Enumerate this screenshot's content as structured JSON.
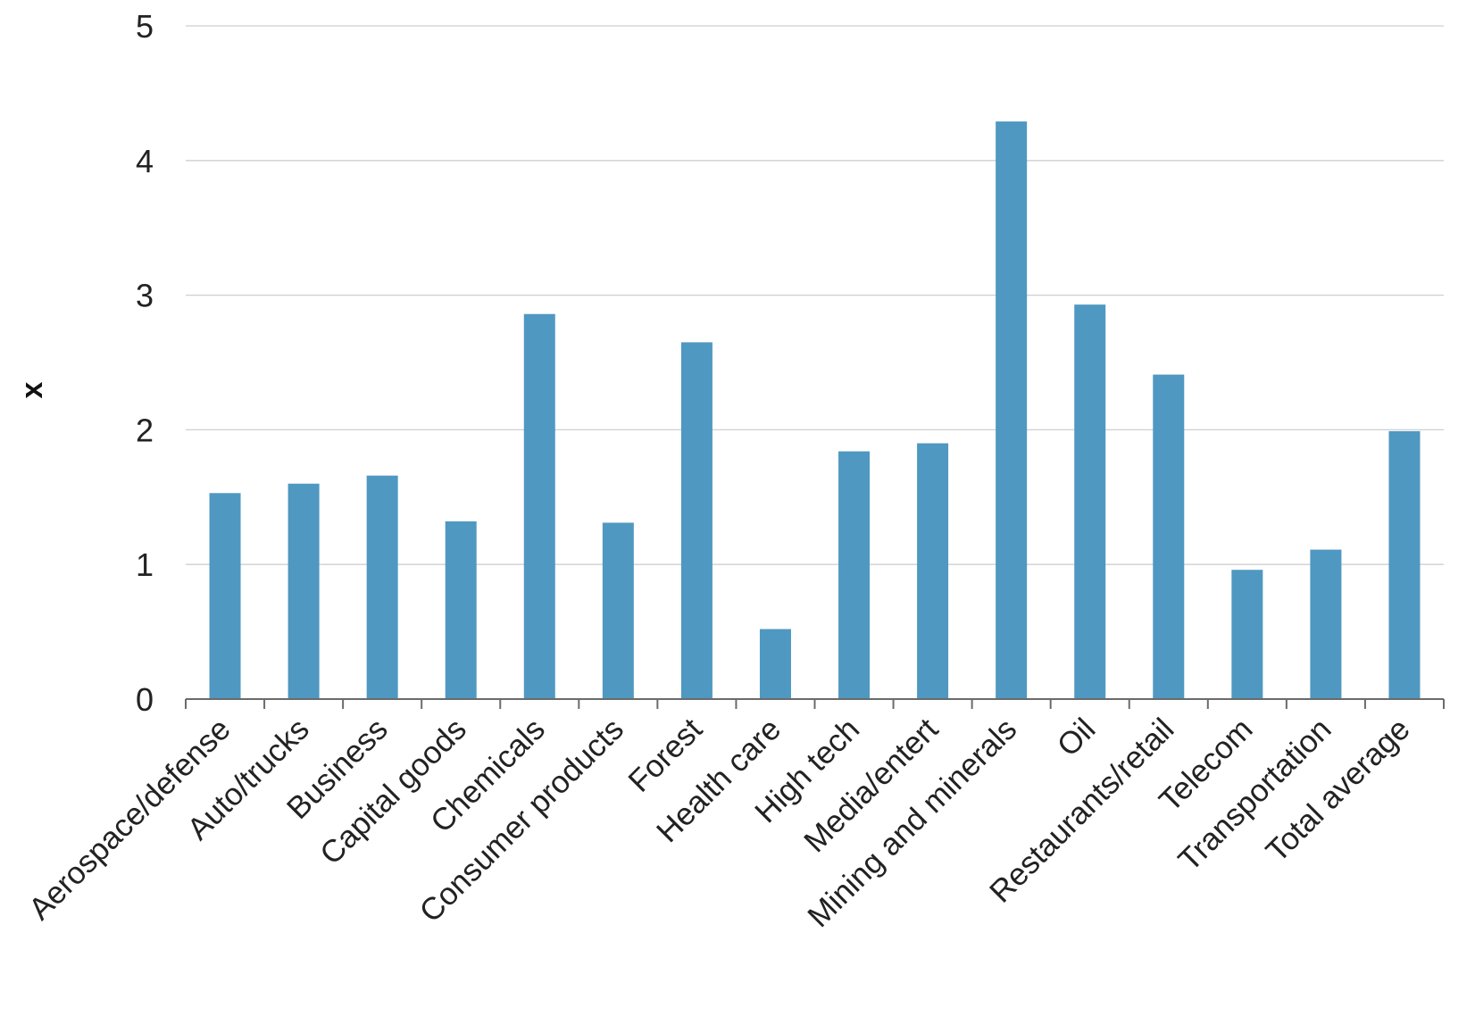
{
  "chart_data": {
    "type": "bar",
    "title": "",
    "xlabel": "",
    "ylabel": "x",
    "ylim": [
      0,
      5
    ],
    "yticks": [
      "0",
      "1",
      "2",
      "3",
      "4",
      "5"
    ],
    "grid": true,
    "bar_color": "#4f98c1",
    "categories": [
      "Aerospace/defense",
      "Auto/trucks",
      "Business",
      "Capital goods",
      "Chemicals",
      "Consumer products",
      "Forest",
      "Health care",
      "High tech",
      "Media/entert",
      "Mining and minerals",
      "Oil",
      "Restaurants/retail",
      "Telecom",
      "Transportation",
      "Total average"
    ],
    "values": [
      1.53,
      1.6,
      1.66,
      1.32,
      2.86,
      1.31,
      2.65,
      0.52,
      1.84,
      1.9,
      4.29,
      2.93,
      2.41,
      0.96,
      1.11,
      1.99
    ]
  }
}
